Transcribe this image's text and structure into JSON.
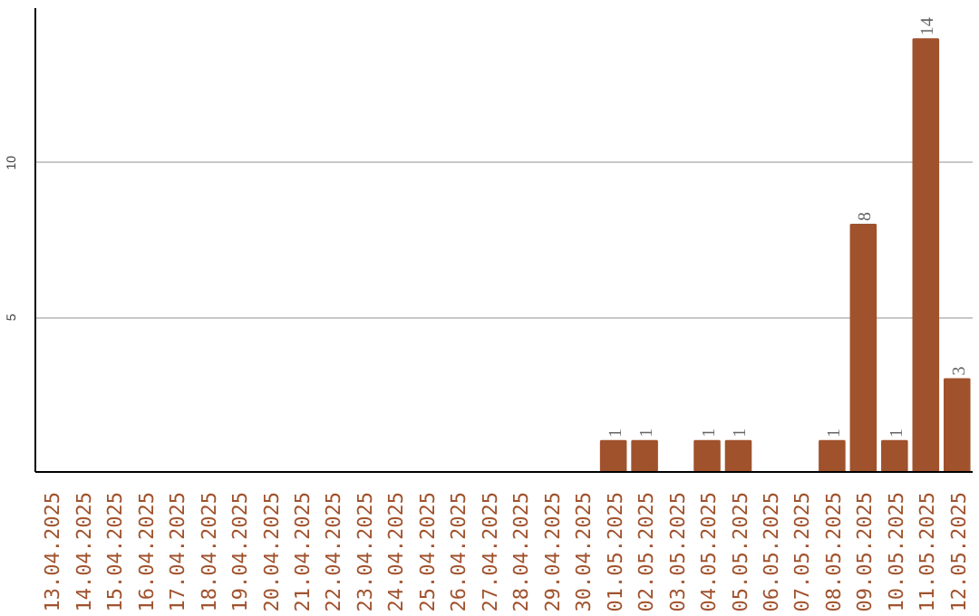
{
  "chart_data": {
    "type": "bar",
    "categories": [
      "13.04.2025",
      "14.04.2025",
      "15.04.2025",
      "16.04.2025",
      "17.04.2025",
      "18.04.2025",
      "19.04.2025",
      "20.04.2025",
      "21.04.2025",
      "22.04.2025",
      "23.04.2025",
      "24.04.2025",
      "25.04.2025",
      "26.04.2025",
      "27.04.2025",
      "28.04.2025",
      "29.04.2025",
      "30.04.2025",
      "01.05.2025",
      "02.05.2025",
      "03.05.2025",
      "04.05.2025",
      "05.05.2025",
      "06.05.2025",
      "07.05.2025",
      "08.05.2025",
      "09.05.2025",
      "10.05.2025",
      "11.05.2025",
      "12.05.2025"
    ],
    "values": [
      0,
      0,
      0,
      0,
      0,
      0,
      0,
      0,
      0,
      0,
      0,
      0,
      0,
      0,
      0,
      0,
      0,
      0,
      1,
      1,
      0,
      1,
      1,
      0,
      0,
      1,
      8,
      1,
      14,
      3
    ],
    "value_labels": [
      null,
      null,
      null,
      null,
      null,
      null,
      null,
      null,
      null,
      null,
      null,
      null,
      null,
      null,
      null,
      null,
      null,
      null,
      "1",
      "1",
      null,
      "1",
      "1",
      null,
      null,
      "1",
      "8",
      "1",
      "14",
      "3"
    ],
    "color": "#a0522d",
    "ylim": [
      0,
      15
    ],
    "yticks": [
      5,
      10
    ],
    "grid": "y"
  }
}
